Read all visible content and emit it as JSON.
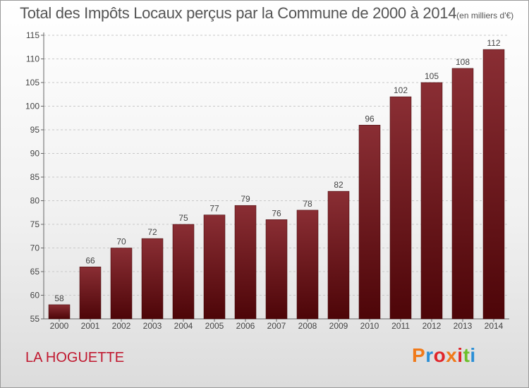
{
  "chart_data": {
    "type": "bar",
    "title": "Total des Impôts Locaux perçus par la Commune de 2000 à 2014",
    "unit": "(en milliers d'€)",
    "categories": [
      "2000",
      "2001",
      "2002",
      "2003",
      "2004",
      "2005",
      "2006",
      "2007",
      "2008",
      "2009",
      "2010",
      "2011",
      "2012",
      "2013",
      "2014"
    ],
    "values": [
      58,
      66,
      70,
      72,
      75,
      77,
      79,
      76,
      78,
      82,
      96,
      102,
      105,
      108,
      112
    ],
    "ylim": [
      55,
      115
    ],
    "yticks": [
      55,
      60,
      65,
      70,
      75,
      80,
      85,
      90,
      95,
      100,
      105,
      110,
      115
    ],
    "xlabel": "",
    "ylabel": "",
    "bar_color": "#7a1f24"
  },
  "footer": {
    "commune": "LA HOGUETTE",
    "logo_text": "Proxiti"
  },
  "colors": {
    "commune": "#c0182f",
    "logo": [
      "#f07a1a",
      "#2a8fd6",
      "#e0262b",
      "#f07a1a",
      "#e0262b",
      "#6cbf2a",
      "#2a8fd6"
    ]
  }
}
